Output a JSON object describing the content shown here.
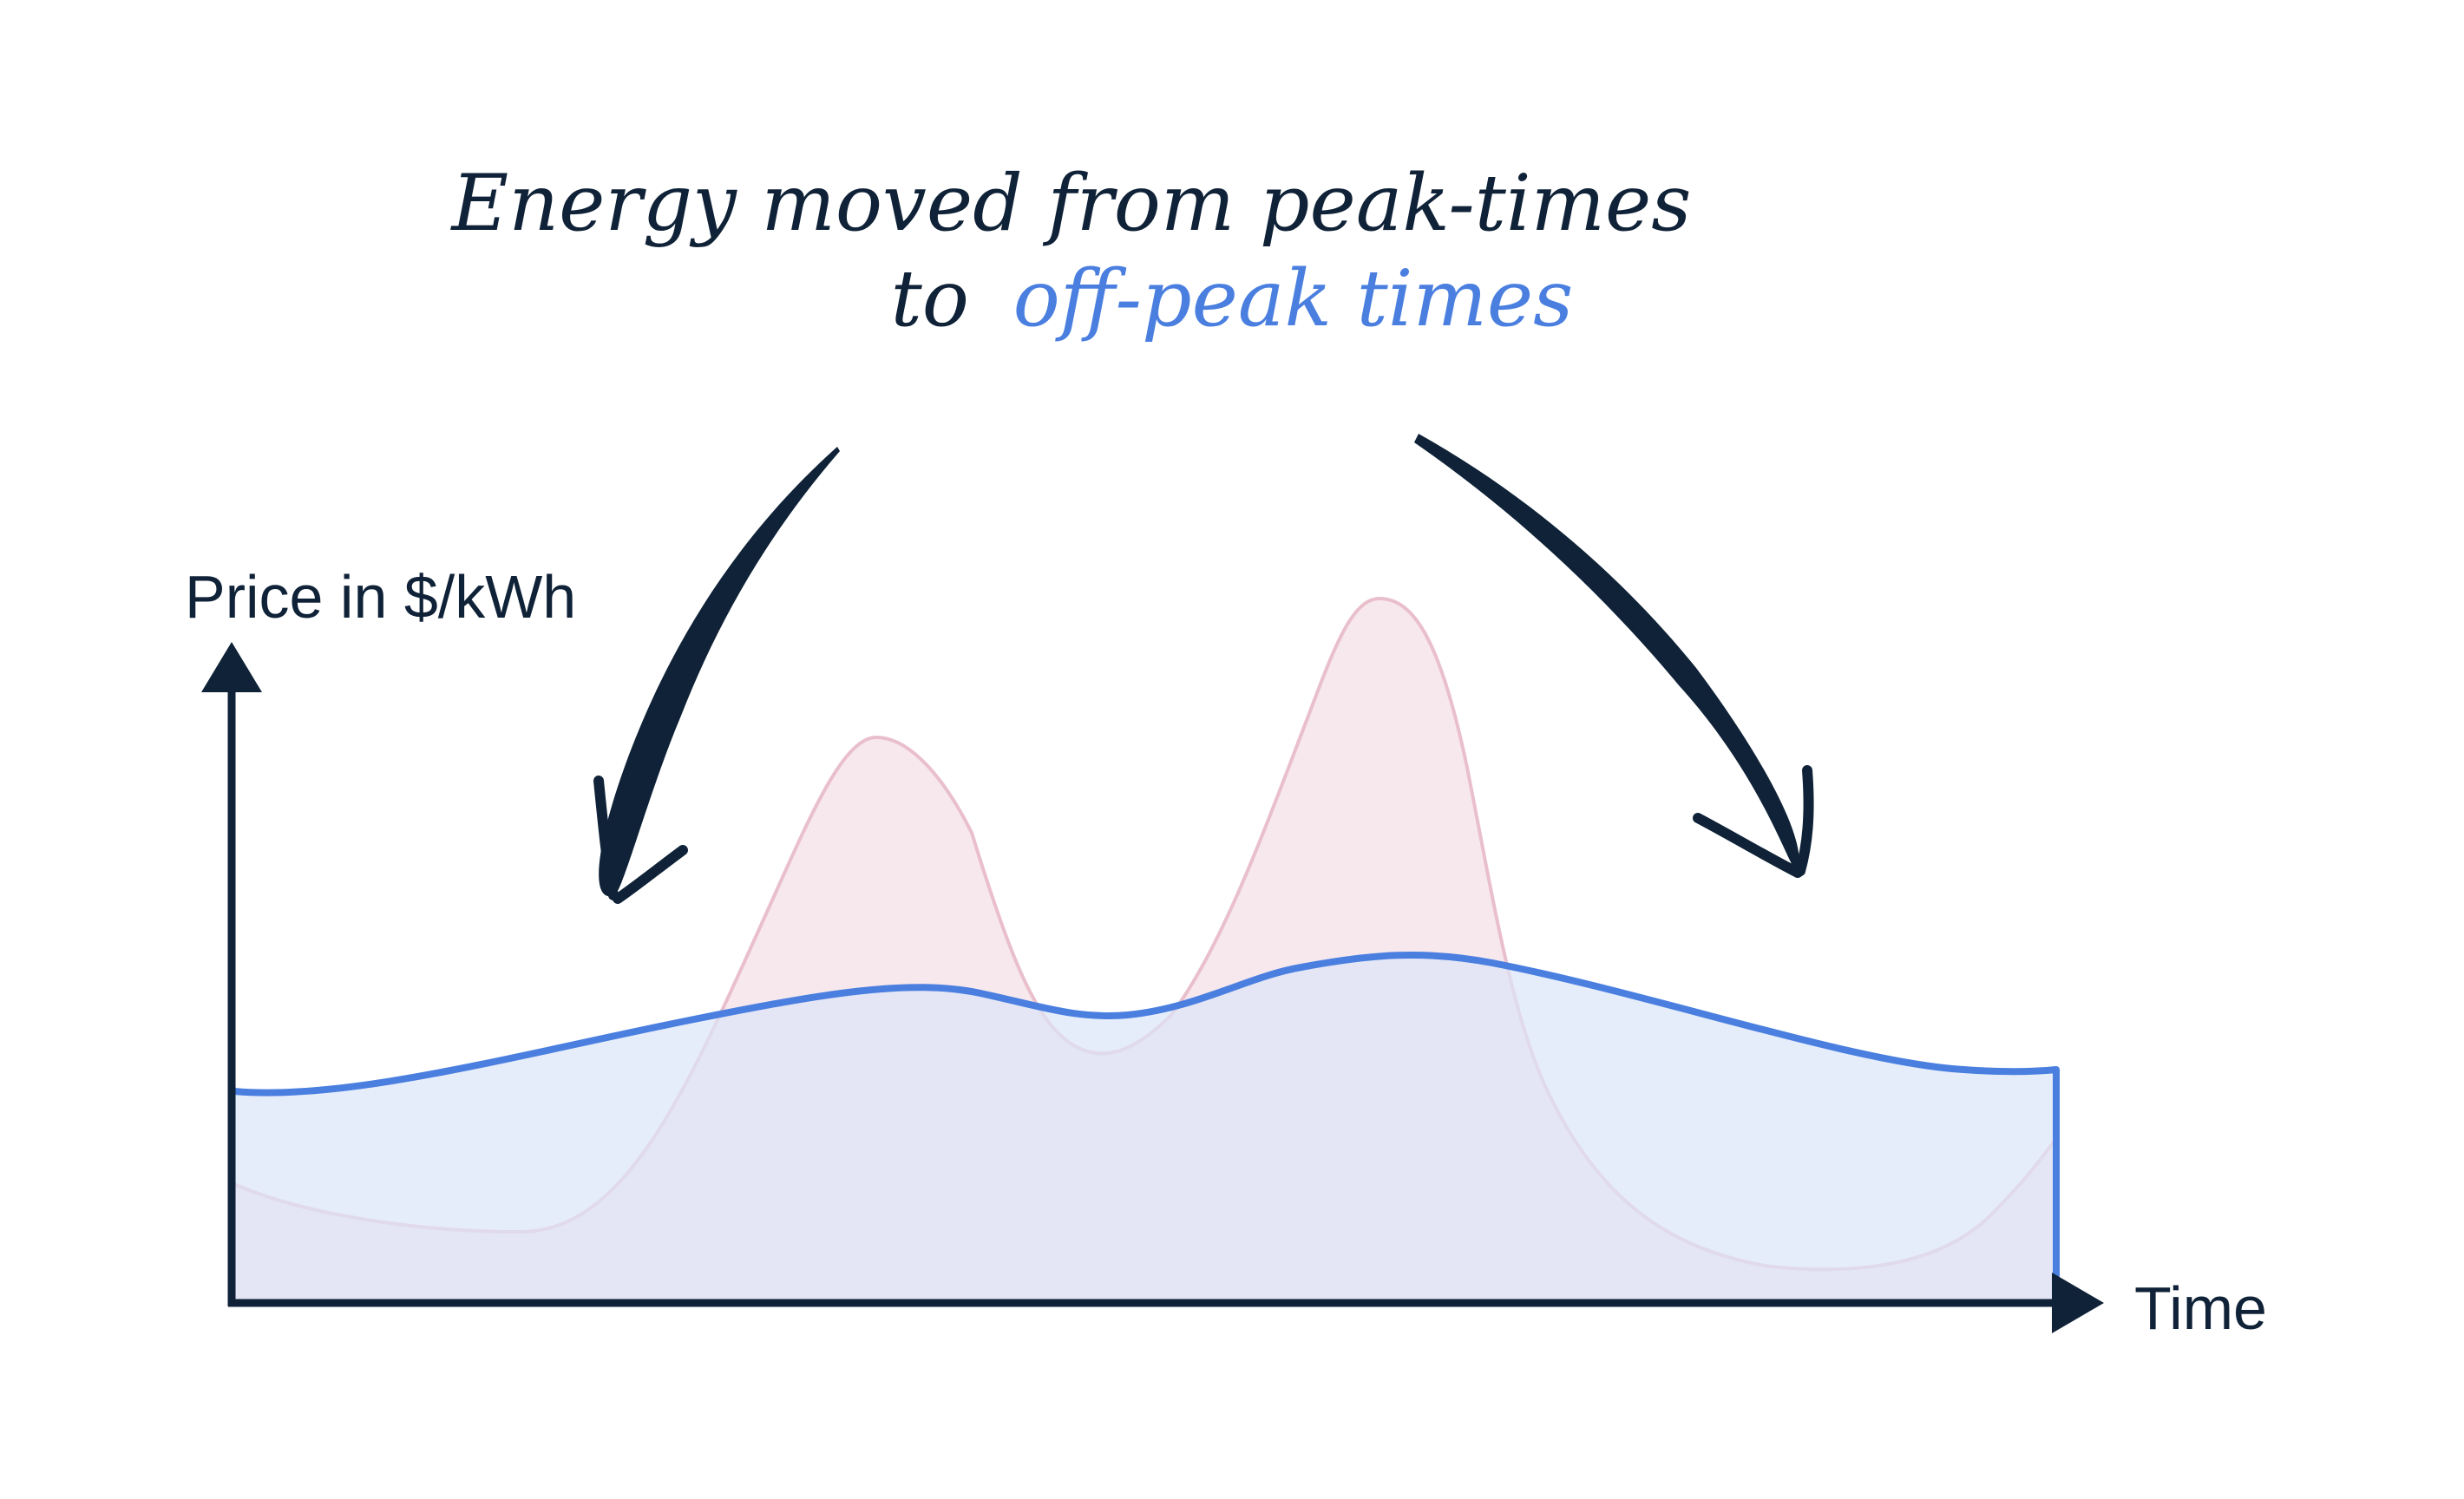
{
  "headline": {
    "line1": "Energy moved from peak-times",
    "line2_prefix": "to",
    "line2_highlight": "off-peak times"
  },
  "axes": {
    "y_label": "Price in $/kWh",
    "x_label": "Time"
  },
  "colors": {
    "ink": "#0f2237",
    "shifted_line": "#4a7fe0",
    "shifted_fill": "#dbe5f8",
    "original_line": "#e9bfcc",
    "original_fill": "#f6e4ea",
    "highlight_text": "#4a7fe0"
  },
  "icons": {
    "left_arrow": "curved-arrow-down-left-icon",
    "right_arrow": "curved-arrow-down-right-icon"
  }
}
